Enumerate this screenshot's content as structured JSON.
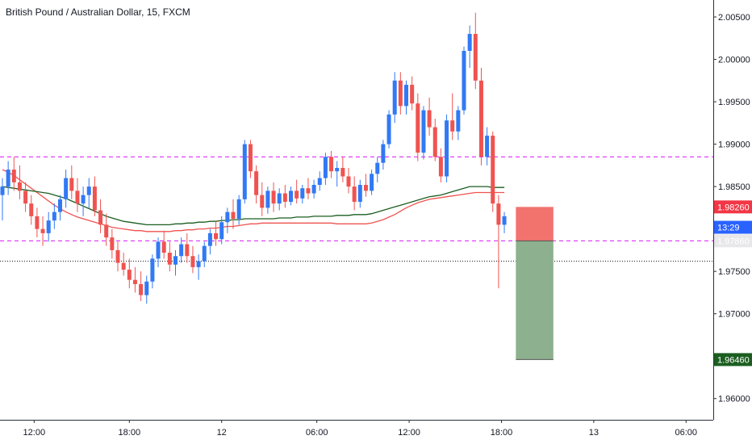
{
  "chart_data": {
    "type": "candlestick",
    "title": "British Pound / Australian Dollar, 15, FXCM",
    "colors": {
      "up": "#3179f5",
      "down": "#ef5350",
      "ma_fast": "#ef5350",
      "ma_slow": "#1b5e20",
      "level": "#e040fb",
      "stop_zone": "#f2736e",
      "target_zone": "#8db08e",
      "last_price_line": "#131722"
    },
    "y_axis": {
      "ticks": [
        "2.00500",
        "2.00000",
        "1.99500",
        "1.99000",
        "1.98500",
        "1.97500",
        "1.97000",
        "1.96000"
      ],
      "range": [
        1.9575,
        2.007
      ]
    },
    "x_axis": {
      "ticks": [
        "12:00",
        "18:00",
        "12",
        "06:00",
        "12:00",
        "18:00",
        "13",
        "06:00"
      ]
    },
    "price_tags": [
      {
        "label": "1.98260",
        "value": 1.9826,
        "color": "#f23645"
      },
      {
        "label": "13:29",
        "value": 1.9802,
        "color": "#2962ff"
      },
      {
        "label": "1.97860",
        "value": 1.9786,
        "color": "#e8e8ea",
        "text_color": "#131722"
      },
      {
        "label": "1.96460",
        "value": 1.9646,
        "color": "#1b5e20"
      }
    ],
    "horizontal_levels": [
      1.9885,
      1.9786
    ],
    "last_price": 1.9762,
    "position": {
      "stop": 1.9826,
      "entry": 1.9786,
      "target": 1.9646
    },
    "candles": [
      [
        1.984,
        1.986,
        1.981,
        1.985
      ],
      [
        1.985,
        1.988,
        1.984,
        1.987
      ],
      [
        1.987,
        1.9885,
        1.9845,
        1.9855
      ],
      [
        1.9855,
        1.9875,
        1.9835,
        1.9845
      ],
      [
        1.9845,
        1.9855,
        1.982,
        1.983
      ],
      [
        1.983,
        1.984,
        1.9805,
        1.9815
      ],
      [
        1.9815,
        1.9825,
        1.979,
        1.98
      ],
      [
        1.98,
        1.9815,
        1.978,
        1.9795
      ],
      [
        1.9795,
        1.982,
        1.9785,
        1.981
      ],
      [
        1.981,
        1.983,
        1.98,
        1.982
      ],
      [
        1.982,
        1.984,
        1.981,
        1.9835
      ],
      [
        1.9835,
        1.987,
        1.9825,
        1.986
      ],
      [
        1.986,
        1.9875,
        1.9835,
        1.9845
      ],
      [
        1.9845,
        1.986,
        1.982,
        1.983
      ],
      [
        1.983,
        1.985,
        1.9815,
        1.984
      ],
      [
        1.984,
        1.986,
        1.9825,
        1.985
      ],
      [
        1.985,
        1.9862,
        1.9815,
        1.9822
      ],
      [
        1.9822,
        1.9835,
        1.9795,
        1.9805
      ],
      [
        1.9805,
        1.9818,
        1.978,
        1.979
      ],
      [
        1.979,
        1.98,
        1.9765,
        1.9775
      ],
      [
        1.9775,
        1.9785,
        1.975,
        1.976
      ],
      [
        1.976,
        1.9772,
        1.9745,
        1.9752
      ],
      [
        1.9752,
        1.9765,
        1.973,
        1.974
      ],
      [
        1.974,
        1.9755,
        1.9725,
        1.9735
      ],
      [
        1.9735,
        1.975,
        1.9715,
        1.9722
      ],
      [
        1.9722,
        1.9745,
        1.9712,
        1.9738
      ],
      [
        1.9738,
        1.977,
        1.973,
        1.9765
      ],
      [
        1.9765,
        1.979,
        1.9755,
        1.9785
      ],
      [
        1.9785,
        1.9798,
        1.9765,
        1.9772
      ],
      [
        1.9772,
        1.9785,
        1.975,
        1.9758
      ],
      [
        1.9758,
        1.9775,
        1.9745,
        1.9768
      ],
      [
        1.9768,
        1.979,
        1.976,
        1.9782
      ],
      [
        1.9782,
        1.9795,
        1.976,
        1.9768
      ],
      [
        1.9768,
        1.978,
        1.9748,
        1.9755
      ],
      [
        1.9755,
        1.977,
        1.974,
        1.9762
      ],
      [
        1.9762,
        1.9785,
        1.9755,
        1.978
      ],
      [
        1.978,
        1.98,
        1.977,
        1.9795
      ],
      [
        1.9795,
        1.981,
        1.978,
        1.9788
      ],
      [
        1.9788,
        1.9815,
        1.9782,
        1.9808
      ],
      [
        1.9808,
        1.9825,
        1.9795,
        1.982
      ],
      [
        1.982,
        1.9835,
        1.98,
        1.9812
      ],
      [
        1.9812,
        1.984,
        1.9805,
        1.9835
      ],
      [
        1.9835,
        1.9905,
        1.983,
        1.99
      ],
      [
        1.99,
        1.9905,
        1.986,
        1.9868
      ],
      [
        1.9868,
        1.9875,
        1.983,
        1.984
      ],
      [
        1.984,
        1.9855,
        1.9815,
        1.9825
      ],
      [
        1.9825,
        1.985,
        1.9818,
        1.9845
      ],
      [
        1.9845,
        1.9855,
        1.982,
        1.983
      ],
      [
        1.983,
        1.9848,
        1.9822,
        1.9842
      ],
      [
        1.9842,
        1.9852,
        1.9825,
        1.9832
      ],
      [
        1.9832,
        1.985,
        1.9828,
        1.9845
      ],
      [
        1.9845,
        1.9858,
        1.983,
        1.9836
      ],
      [
        1.9836,
        1.9852,
        1.983,
        1.9848
      ],
      [
        1.9848,
        1.986,
        1.9835,
        1.9842
      ],
      [
        1.9842,
        1.9858,
        1.9836,
        1.9852
      ],
      [
        1.9852,
        1.9868,
        1.9845,
        1.986
      ],
      [
        1.986,
        1.989,
        1.9852,
        1.9885
      ],
      [
        1.9885,
        1.9892,
        1.986,
        1.9868
      ],
      [
        1.9868,
        1.988,
        1.985,
        1.9872
      ],
      [
        1.9872,
        1.9885,
        1.9855,
        1.9862
      ],
      [
        1.9862,
        1.9872,
        1.9842,
        1.985
      ],
      [
        1.985,
        1.9862,
        1.9822,
        1.9832
      ],
      [
        1.9832,
        1.9858,
        1.9825,
        1.9852
      ],
      [
        1.9852,
        1.9865,
        1.9838,
        1.9845
      ],
      [
        1.9845,
        1.987,
        1.984,
        1.9865
      ],
      [
        1.9865,
        1.9885,
        1.9855,
        1.9878
      ],
      [
        1.9878,
        1.9905,
        1.987,
        1.99
      ],
      [
        1.99,
        1.994,
        1.9895,
        1.9935
      ],
      [
        1.9935,
        1.9985,
        1.9925,
        1.9975
      ],
      [
        1.9975,
        1.9985,
        1.9935,
        1.9945
      ],
      [
        1.9945,
        1.9975,
        1.9935,
        1.997
      ],
      [
        1.997,
        1.998,
        1.994,
        1.9948
      ],
      [
        1.9948,
        1.996,
        1.988,
        1.989
      ],
      [
        1.989,
        1.9945,
        1.9882,
        1.994
      ],
      [
        1.994,
        1.9955,
        1.991,
        1.992
      ],
      [
        1.992,
        1.993,
        1.988,
        1.9885
      ],
      [
        1.9885,
        1.9895,
        1.9855,
        1.9862
      ],
      [
        1.9862,
        1.9935,
        1.9855,
        1.9928
      ],
      [
        1.9928,
        1.996,
        1.9905,
        1.9915
      ],
      [
        1.9915,
        1.9945,
        1.9905,
        1.994
      ],
      [
        1.994,
        2.0015,
        1.9935,
        2.001
      ],
      [
        2.001,
        2.004,
        1.999,
        2.003
      ],
      [
        2.003,
        2.0055,
        1.9965,
        1.9975
      ],
      [
        1.9975,
        1.999,
        1.9875,
        1.9885
      ],
      [
        1.9885,
        1.992,
        1.9875,
        1.991
      ],
      [
        1.991,
        1.9915,
        1.982,
        1.983
      ],
      [
        1.983,
        1.984,
        1.973,
        1.9805
      ],
      [
        1.9805,
        1.982,
        1.9795,
        1.9815
      ]
    ],
    "ma_fast": [
      1.987,
      1.9867,
      1.9863,
      1.9858,
      1.9853,
      1.9848,
      1.9843,
      1.9838,
      1.9833,
      1.9828,
      1.9824,
      1.982,
      1.9817,
      1.9814,
      1.9812,
      1.981,
      1.9808,
      1.9806,
      1.9804,
      1.9802,
      1.9801,
      1.98,
      1.9799,
      1.9798,
      1.9798,
      1.9797,
      1.9797,
      1.9797,
      1.9797,
      1.9797,
      1.9798,
      1.9798,
      1.9799,
      1.9799,
      1.98,
      1.98,
      1.9801,
      1.9801,
      1.9802,
      1.9803,
      1.9803,
      1.9804,
      1.9805,
      1.9806,
      1.9806,
      1.9807,
      1.9807,
      1.9807,
      1.9807,
      1.9807,
      1.9807,
      1.9807,
      1.9807,
      1.9807,
      1.9807,
      1.9807,
      1.9807,
      1.9807,
      1.9806,
      1.9806,
      1.9806,
      1.9806,
      1.9806,
      1.9806,
      1.9807,
      1.9809,
      1.9811,
      1.9814,
      1.9817,
      1.9821,
      1.9825,
      1.9828,
      1.9831,
      1.9833,
      1.9835,
      1.9836,
      1.9837,
      1.9838,
      1.9839,
      1.984,
      1.9841,
      1.9842,
      1.9843,
      1.9843,
      1.9843,
      1.9843,
      1.9843,
      1.9843
    ],
    "ma_slow": [
      1.985,
      1.9849,
      1.9848,
      1.9847,
      1.9846,
      1.9845,
      1.9844,
      1.9843,
      1.9842,
      1.984,
      1.9838,
      1.9836,
      1.9833,
      1.983,
      1.9827,
      1.9824,
      1.9821,
      1.9818,
      1.9815,
      1.9813,
      1.9811,
      1.9809,
      1.9808,
      1.9807,
      1.9806,
      1.9805,
      1.9805,
      1.9805,
      1.9805,
      1.9805,
      1.9806,
      1.9806,
      1.9807,
      1.9807,
      1.9808,
      1.9808,
      1.9809,
      1.9809,
      1.981,
      1.981,
      1.9811,
      1.9811,
      1.9812,
      1.9812,
      1.9812,
      1.9812,
      1.9812,
      1.9812,
      1.9813,
      1.9813,
      1.9813,
      1.9814,
      1.9814,
      1.9814,
      1.9815,
      1.9815,
      1.9815,
      1.9815,
      1.9816,
      1.9816,
      1.9816,
      1.9817,
      1.9817,
      1.9817,
      1.9818,
      1.982,
      1.9822,
      1.9824,
      1.9826,
      1.9828,
      1.983,
      1.9832,
      1.9834,
      1.9836,
      1.9838,
      1.9839,
      1.984,
      1.9842,
      1.9844,
      1.9846,
      1.9848,
      1.985,
      1.985,
      1.985,
      1.985,
      1.9849,
      1.9849,
      1.9849
    ]
  }
}
